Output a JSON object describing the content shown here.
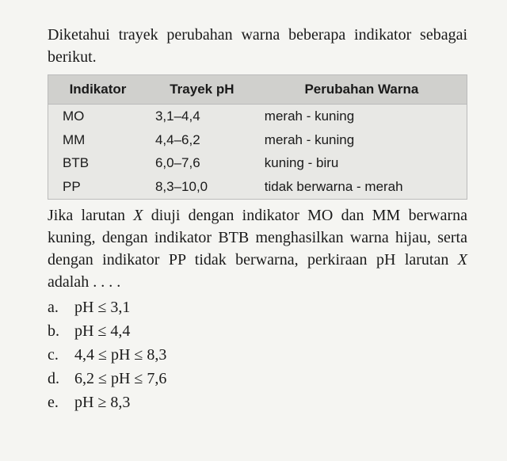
{
  "intro_line1": "Diketahui trayek perubahan warna beberapa",
  "intro_line2": "indikator sebagai berikut.",
  "table": {
    "headers": [
      "Indikator",
      "Trayek pH",
      "Perubahan Warna"
    ],
    "rows": [
      [
        "MO",
        "3,1–4,4",
        "merah - kuning"
      ],
      [
        "MM",
        "4,4–6,2",
        "merah - kuning"
      ],
      [
        "BTB",
        "6,0–7,6",
        "kuning - biru"
      ],
      [
        "PP",
        "8,3–10,0",
        "tidak berwarna - merah"
      ]
    ],
    "col_align": [
      "left",
      "left",
      "left"
    ],
    "header_bg": "#d0d0cd",
    "cell_bg": "#e8e8e5"
  },
  "question_parts": {
    "p1": "Jika larutan ",
    "pX": "X",
    "p2": " diuji dengan indikator MO dan MM berwarna kuning, dengan indikator BTB menghasil­kan warna hijau, serta dengan indikator PP tidak berwarna, perkiraan pH larutan ",
    "p3": " adalah . . . ."
  },
  "options": [
    {
      "letter": "a.",
      "text": "pH ≤ 3,1"
    },
    {
      "letter": "b.",
      "text": "pH ≤ 4,4"
    },
    {
      "letter": "c.",
      "text": "4,4 ≤ pH ≤ 8,3"
    },
    {
      "letter": "d.",
      "text": "6,2 ≤ pH ≤ 7,6"
    },
    {
      "letter": "e.",
      "text": "pH ≥ 8,3"
    }
  ],
  "colors": {
    "background": "#f5f5f2",
    "text": "#1a1a1a",
    "table_border": "#bbbbbb"
  },
  "fonts": {
    "body_family": "Times New Roman",
    "body_size_pt": 15,
    "table_family": "Arial",
    "table_size_pt": 13
  }
}
